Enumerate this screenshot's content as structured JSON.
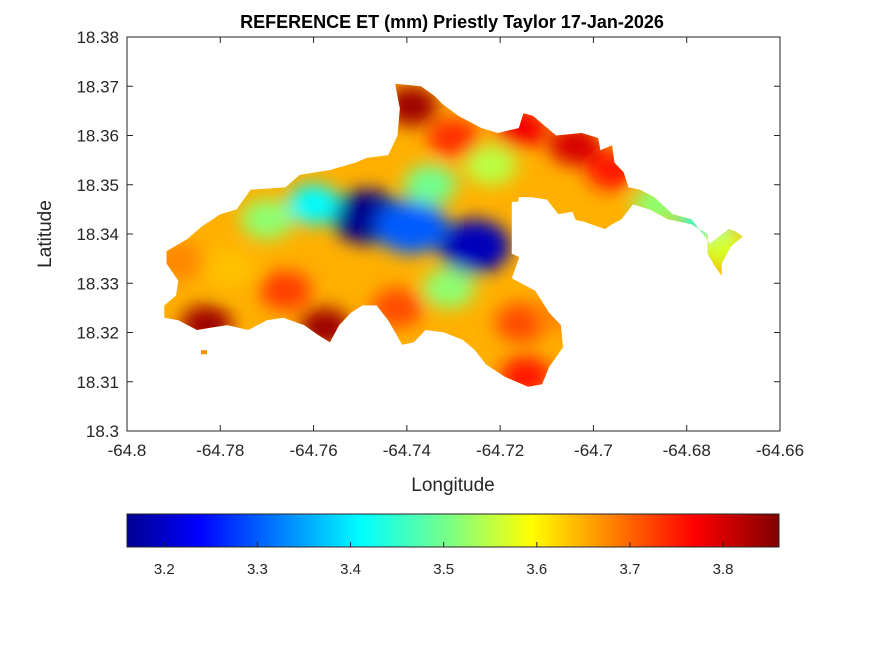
{
  "chart_data": {
    "type": "heatmap",
    "title": "REFERENCE ET (mm) Priestly Taylor 17-Jan-2026",
    "xlabel": "Longitude",
    "ylabel": "Latitude",
    "xlim": [
      -64.8,
      -64.66
    ],
    "ylim": [
      18.3,
      18.38
    ],
    "x_ticks": [
      "-64.8",
      "-64.78",
      "-64.76",
      "-64.74",
      "-64.72",
      "-64.7",
      "-64.68",
      "-64.66"
    ],
    "x_tick_values": [
      -64.8,
      -64.78,
      -64.76,
      -64.74,
      -64.72,
      -64.7,
      -64.68,
      -64.66
    ],
    "y_ticks": [
      "18.3",
      "18.31",
      "18.32",
      "18.33",
      "18.34",
      "18.35",
      "18.36",
      "18.37",
      "18.38"
    ],
    "y_tick_values": [
      18.3,
      18.31,
      18.32,
      18.33,
      18.34,
      18.35,
      18.36,
      18.37,
      18.38
    ],
    "colormap": "jet",
    "grid": false,
    "colorbar": {
      "location": "bottom",
      "range": [
        3.16,
        3.86
      ],
      "ticks": [
        "3.2",
        "3.3",
        "3.4",
        "3.5",
        "3.6",
        "3.7",
        "3.8"
      ],
      "tick_values": [
        3.2,
        3.3,
        3.4,
        3.5,
        3.6,
        3.7,
        3.8
      ]
    },
    "land_outline": [
      [
        -64.7915,
        18.3365
      ],
      [
        -64.787,
        18.339
      ],
      [
        -64.784,
        18.3415
      ],
      [
        -64.78,
        18.344
      ],
      [
        -64.7765,
        18.345
      ],
      [
        -64.7735,
        18.349
      ],
      [
        -64.766,
        18.3495
      ],
      [
        -64.763,
        18.352
      ],
      [
        -64.7565,
        18.353
      ],
      [
        -64.751,
        18.3545
      ],
      [
        -64.7485,
        18.3555
      ],
      [
        -64.744,
        18.356
      ],
      [
        -64.742,
        18.36
      ],
      [
        -64.7415,
        18.3655
      ],
      [
        -64.742,
        18.368
      ],
      [
        -64.7425,
        18.3705
      ],
      [
        -64.737,
        18.37
      ],
      [
        -64.734,
        18.368
      ],
      [
        -64.7325,
        18.3665
      ],
      [
        -64.729,
        18.364
      ],
      [
        -64.724,
        18.3615
      ],
      [
        -64.7205,
        18.3605
      ],
      [
        -64.716,
        18.3615
      ],
      [
        -64.715,
        18.3645
      ],
      [
        -64.713,
        18.364
      ],
      [
        -64.708,
        18.36
      ],
      [
        -64.7025,
        18.3605
      ],
      [
        -64.699,
        18.3595
      ],
      [
        -64.6985,
        18.357
      ],
      [
        -64.696,
        18.358
      ],
      [
        -64.6955,
        18.3545
      ],
      [
        -64.6935,
        18.3525
      ],
      [
        -64.6925,
        18.3495
      ],
      [
        -64.69,
        18.349
      ],
      [
        -64.687,
        18.3475
      ],
      [
        -64.683,
        18.344
      ],
      [
        -64.679,
        18.343
      ],
      [
        -64.6765,
        18.34
      ],
      [
        -64.675,
        18.338
      ],
      [
        -64.671,
        18.341
      ],
      [
        -64.6695,
        18.3405
      ],
      [
        -64.668,
        18.3395
      ],
      [
        -64.6705,
        18.3375
      ],
      [
        -64.6725,
        18.334
      ],
      [
        -64.6725,
        18.3315
      ],
      [
        -64.674,
        18.3335
      ],
      [
        -64.6755,
        18.336
      ],
      [
        -64.6755,
        18.34
      ],
      [
        -64.679,
        18.342
      ],
      [
        -64.684,
        18.343
      ],
      [
        -64.688,
        18.345
      ],
      [
        -64.6915,
        18.346
      ],
      [
        -64.694,
        18.343
      ],
      [
        -64.696,
        18.342
      ],
      [
        -64.6975,
        18.341
      ],
      [
        -64.702,
        18.3425
      ],
      [
        -64.7045,
        18.343
      ],
      [
        -64.7085,
        18.3435
      ],
      [
        -64.71,
        18.347
      ],
      [
        -64.7135,
        18.3475
      ],
      [
        -64.716,
        18.3475
      ],
      [
        -64.7165,
        18.344
      ],
      [
        -64.715,
        18.3395
      ],
      [
        -64.716,
        18.335
      ],
      [
        -64.7175,
        18.331
      ],
      [
        -64.7125,
        18.3285
      ],
      [
        -64.7095,
        18.324
      ],
      [
        -64.707,
        18.3215
      ],
      [
        -64.7065,
        18.317
      ],
      [
        -64.7095,
        18.313
      ],
      [
        -64.711,
        18.3095
      ],
      [
        -64.714,
        18.309
      ],
      [
        -64.719,
        18.311
      ],
      [
        -64.723,
        18.3135
      ],
      [
        -64.7255,
        18.3165
      ],
      [
        -64.728,
        18.3185
      ],
      [
        -64.732,
        18.32
      ],
      [
        -64.736,
        18.3205
      ],
      [
        -64.7385,
        18.318
      ],
      [
        -64.741,
        18.3175
      ],
      [
        -64.744,
        18.3225
      ],
      [
        -64.7465,
        18.3255
      ],
      [
        -64.7495,
        18.3255
      ],
      [
        -64.752,
        18.324
      ],
      [
        -64.7545,
        18.3215
      ],
      [
        -64.7565,
        18.318
      ],
      [
        -64.759,
        18.3195
      ],
      [
        -64.762,
        18.3215
      ],
      [
        -64.7665,
        18.323
      ],
      [
        -64.77,
        18.3225
      ],
      [
        -64.774,
        18.3205
      ],
      [
        -64.7785,
        18.3215
      ],
      [
        -64.782,
        18.321
      ],
      [
        -64.785,
        18.3205
      ],
      [
        -64.789,
        18.3225
      ],
      [
        -64.792,
        18.323
      ],
      [
        -64.792,
        18.3255
      ],
      [
        -64.7895,
        18.3275
      ],
      [
        -64.789,
        18.3305
      ],
      [
        -64.7915,
        18.334
      ]
    ],
    "islet": [
      -64.7835,
      18.316
    ],
    "cutout": [
      [
        -64.7175,
        18.3465
      ],
      [
        -64.71,
        18.347
      ],
      [
        -64.7075,
        18.344
      ],
      [
        -64.7045,
        18.3445
      ],
      [
        -64.703,
        18.341
      ],
      [
        -64.7045,
        18.3375
      ],
      [
        -64.709,
        18.336
      ],
      [
        -64.714,
        18.3345
      ],
      [
        -64.7175,
        18.336
      ]
    ],
    "value_centers": [
      {
        "x": -64.7485,
        "y": 18.3435,
        "value": 3.17
      },
      {
        "x": -64.7255,
        "y": 18.3375,
        "value": 3.2
      },
      {
        "x": -64.739,
        "y": 18.3415,
        "value": 3.31
      },
      {
        "x": -64.76,
        "y": 18.346,
        "value": 3.42
      },
      {
        "x": -64.77,
        "y": 18.343,
        "value": 3.52
      },
      {
        "x": -64.735,
        "y": 18.35,
        "value": 3.5
      },
      {
        "x": -64.722,
        "y": 18.354,
        "value": 3.55
      },
      {
        "x": -64.739,
        "y": 18.366,
        "value": 3.84
      },
      {
        "x": -64.73,
        "y": 18.3595,
        "value": 3.74
      },
      {
        "x": -64.7155,
        "y": 18.3615,
        "value": 3.78
      },
      {
        "x": -64.704,
        "y": 18.358,
        "value": 3.8
      },
      {
        "x": -64.7575,
        "y": 18.321,
        "value": 3.84
      },
      {
        "x": -64.742,
        "y": 18.325,
        "value": 3.72
      },
      {
        "x": -64.783,
        "y": 18.3215,
        "value": 3.84
      },
      {
        "x": -64.789,
        "y": 18.3345,
        "value": 3.68
      },
      {
        "x": -64.766,
        "y": 18.3285,
        "value": 3.73
      },
      {
        "x": -64.778,
        "y": 18.333,
        "value": 3.64
      },
      {
        "x": -64.7155,
        "y": 18.322,
        "value": 3.72
      },
      {
        "x": -64.707,
        "y": 18.324,
        "value": 3.68
      },
      {
        "x": -64.7145,
        "y": 18.311,
        "value": 3.76
      },
      {
        "x": -64.731,
        "y": 18.329,
        "value": 3.52
      },
      {
        "x": -64.686,
        "y": 18.346,
        "value": 3.52
      },
      {
        "x": -64.676,
        "y": 18.342,
        "value": 3.45
      },
      {
        "x": -64.672,
        "y": 18.337,
        "value": 3.57
      },
      {
        "x": -64.696,
        "y": 18.353,
        "value": 3.76
      }
    ]
  }
}
